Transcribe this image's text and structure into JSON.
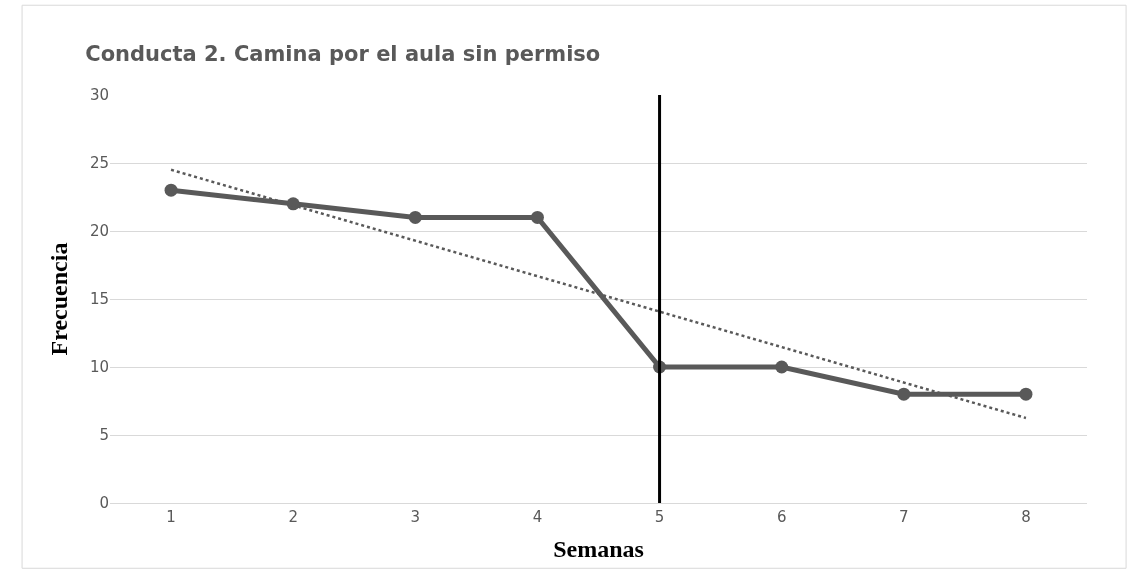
{
  "chart_data": {
    "type": "line",
    "title": "Conducta 2. Camina por el aula sin permiso",
    "xlabel": "Semanas",
    "ylabel": "Frecuencia",
    "x": [
      1,
      2,
      3,
      4,
      5,
      6,
      7,
      8
    ],
    "series": [
      {
        "color": "#595959",
        "values": [
          23,
          22,
          21,
          21,
          10,
          10,
          8,
          8
        ],
        "marker": "circle",
        "line_style": "solid"
      },
      {
        "type": "line",
        "x": [
          1,
          8
        ],
        "color": "#595959",
        "values": [
          24.5,
          6.25
        ],
        "marker": "none",
        "line_style": "dotted"
      }
    ],
    "xlim": [
      0.5,
      8.5
    ],
    "xticks": [
      1,
      2,
      3,
      4,
      5,
      6,
      7,
      8
    ],
    "ylim": [
      0,
      30
    ],
    "yticks": [
      0,
      5,
      10,
      15,
      20,
      25,
      30
    ],
    "grid": "y",
    "ref_lines": [
      {
        "axis": "x",
        "value": 5,
        "color": "#000000",
        "line_style": "solid"
      }
    ]
  }
}
